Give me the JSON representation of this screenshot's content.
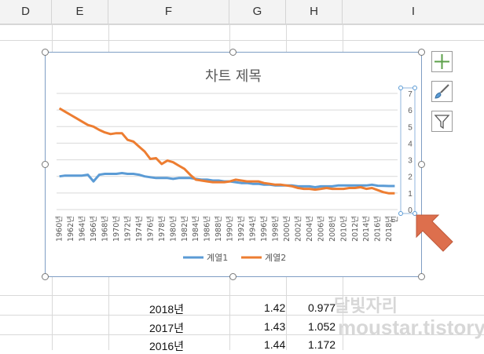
{
  "columns": [
    "D",
    "E",
    "F",
    "G",
    "H",
    "I"
  ],
  "chart": {
    "title": "차트 제목",
    "legend": [
      {
        "name": "계열1",
        "color": "#5b9bd5"
      },
      {
        "name": "계열2",
        "color": "#ed7d31"
      }
    ]
  },
  "chart_data": {
    "type": "line",
    "title": "차트 제목",
    "ylim": [
      0,
      7
    ],
    "yticks": [
      "0",
      "1",
      "2",
      "3",
      "4",
      "5",
      "6",
      "7"
    ],
    "x": [
      "1960년",
      "1961년",
      "1962년",
      "1963년",
      "1964년",
      "1965년",
      "1966년",
      "1967년",
      "1968년",
      "1969년",
      "1970년",
      "1971년",
      "1972년",
      "1973년",
      "1974년",
      "1975년",
      "1976년",
      "1977년",
      "1978년",
      "1979년",
      "1980년",
      "1981년",
      "1982년",
      "1983년",
      "1984년",
      "1985년",
      "1986년",
      "1987년",
      "1988년",
      "1989년",
      "1990년",
      "1991년",
      "1992년",
      "1993년",
      "1994년",
      "1995년",
      "1996년",
      "1997년",
      "1998년",
      "1999년",
      "2000년",
      "2001년",
      "2002년",
      "2003년",
      "2004년",
      "2005년",
      "2006년",
      "2007년",
      "2008년",
      "2009년",
      "2010년",
      "2011년",
      "2012년",
      "2013년",
      "2014년",
      "2015년",
      "2016년",
      "2017년",
      "2018년",
      "빈"
    ],
    "xtick_labels": [
      "1960년",
      "1962년",
      "1964년",
      "1966년",
      "1968년",
      "1970년",
      "1972년",
      "1974년",
      "1976년",
      "1978년",
      "1980년",
      "1982년",
      "1984년",
      "1986년",
      "1988년",
      "1990년",
      "1992년",
      "1994년",
      "1996년",
      "1998년",
      "2000년",
      "2002년",
      "2004년",
      "2006년",
      "2008년",
      "2010년",
      "2012년",
      "2014년",
      "2016년",
      "2018년",
      "빈"
    ],
    "series": [
      {
        "name": "계열1",
        "color": "#5b9bd5",
        "values": [
          2.0,
          2.05,
          2.05,
          2.05,
          2.05,
          2.1,
          1.7,
          2.1,
          2.15,
          2.15,
          2.15,
          2.2,
          2.15,
          2.15,
          2.1,
          2.0,
          1.95,
          1.9,
          1.9,
          1.9,
          1.85,
          1.9,
          1.9,
          1.9,
          1.85,
          1.8,
          1.8,
          1.75,
          1.75,
          1.7,
          1.7,
          1.65,
          1.6,
          1.6,
          1.55,
          1.55,
          1.5,
          1.5,
          1.45,
          1.45,
          1.45,
          1.45,
          1.4,
          1.4,
          1.4,
          1.35,
          1.4,
          1.4,
          1.4,
          1.45,
          1.45,
          1.45,
          1.45,
          1.45,
          1.45,
          1.5,
          1.44,
          1.43,
          1.42,
          1.42
        ]
      },
      {
        "name": "계열2",
        "color": "#ed7d31",
        "values": [
          6.1,
          5.9,
          5.7,
          5.5,
          5.3,
          5.1,
          5.0,
          4.8,
          4.65,
          4.55,
          4.6,
          4.6,
          4.2,
          4.1,
          3.8,
          3.5,
          3.05,
          3.1,
          2.75,
          2.95,
          2.85,
          2.65,
          2.45,
          2.1,
          1.8,
          1.75,
          1.7,
          1.65,
          1.65,
          1.65,
          1.7,
          1.8,
          1.75,
          1.7,
          1.7,
          1.7,
          1.6,
          1.55,
          1.5,
          1.5,
          1.45,
          1.4,
          1.3,
          1.25,
          1.25,
          1.2,
          1.25,
          1.3,
          1.25,
          1.25,
          1.25,
          1.3,
          1.3,
          1.35,
          1.25,
          1.3,
          1.172,
          1.052,
          0.977,
          0.977
        ]
      }
    ],
    "legend": "bottom",
    "grid": true
  },
  "cells": [
    {
      "f": "2018년",
      "g": "1.42",
      "h": "0.977"
    },
    {
      "f": "2017년",
      "g": "1.43",
      "h": "1.052"
    },
    {
      "f": "2016년",
      "g": "1.44",
      "h": "1.172"
    }
  ],
  "side_buttons": [
    {
      "name": "add-chart-element-button",
      "icon": "plus-icon"
    },
    {
      "name": "chart-styles-button",
      "icon": "brush-icon"
    },
    {
      "name": "chart-filters-button",
      "icon": "filter-icon"
    }
  ],
  "watermark": [
    "달빛자리",
    "moustar.tistory"
  ]
}
